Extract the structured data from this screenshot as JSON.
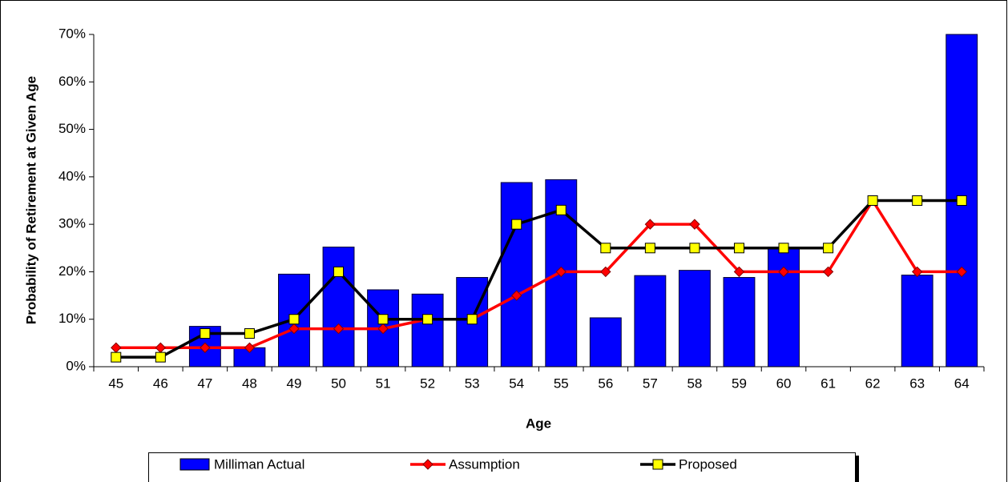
{
  "chart_data": {
    "type": "combo",
    "x_label": "Age",
    "y_label": "Probability of Retirement at Given Age",
    "categories": [
      "45",
      "46",
      "47",
      "48",
      "49",
      "50",
      "51",
      "52",
      "53",
      "54",
      "55",
      "56",
      "57",
      "58",
      "59",
      "60",
      "61",
      "62",
      "63",
      "64"
    ],
    "series": [
      {
        "name": "Milliman Actual",
        "type": "bar",
        "color": "#0000ff",
        "values": [
          null,
          null,
          8.5,
          4,
          19.5,
          25.2,
          16.2,
          15.3,
          18.8,
          38.8,
          39.4,
          10.3,
          19.2,
          20.3,
          18.8,
          24.8,
          null,
          null,
          19.3,
          70
        ]
      },
      {
        "name": "Assumption",
        "type": "line",
        "color": "#ff0000",
        "marker": "diamond",
        "marker_color": "#ff0000",
        "values": [
          4,
          4,
          4,
          4,
          8,
          8,
          8,
          10,
          10,
          15,
          20,
          20,
          30,
          30,
          20,
          20,
          20,
          35,
          20,
          20
        ]
      },
      {
        "name": "Proposed",
        "type": "line",
        "color": "#000000",
        "marker": "square",
        "marker_color": "#ffff00",
        "values": [
          2,
          2,
          7,
          7,
          10,
          20,
          10,
          10,
          10,
          30,
          33,
          25,
          25,
          25,
          25,
          25,
          25,
          35,
          35,
          35
        ]
      }
    ],
    "ylim": [
      0,
      70
    ],
    "yticks": [
      {
        "value": 0,
        "label": "0%"
      },
      {
        "value": 10,
        "label": "10%"
      },
      {
        "value": 20,
        "label": "20%"
      },
      {
        "value": 30,
        "label": "30%"
      },
      {
        "value": 40,
        "label": "40%"
      },
      {
        "value": 50,
        "label": "50%"
      },
      {
        "value": 60,
        "label": "60%"
      },
      {
        "value": 70,
        "label": "70%"
      }
    ],
    "grid": false,
    "legend": "bottom"
  }
}
